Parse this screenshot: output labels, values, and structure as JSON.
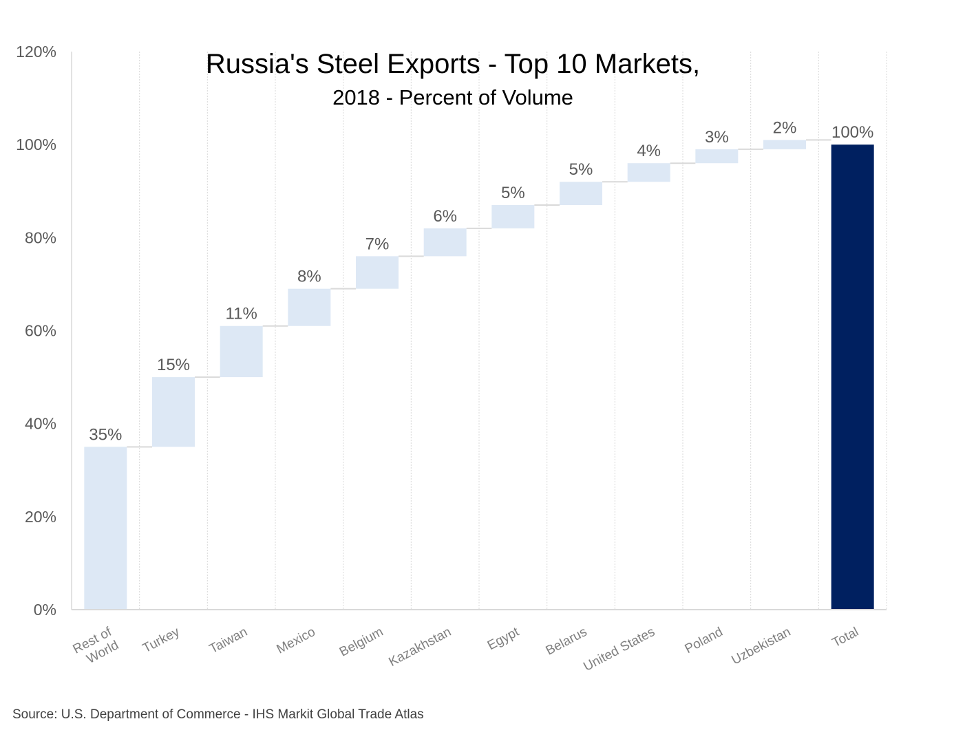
{
  "chart_data": {
    "type": "waterfall",
    "title": "Russia's Steel Exports - Top 10 Markets,",
    "subtitle": "2018 - Percent of Volume",
    "categories": [
      "Rest of World",
      "Turkey",
      "Taiwan",
      "Mexico",
      "Belgium",
      "Kazakhstan",
      "Egypt",
      "Belarus",
      "United States",
      "Poland",
      "Uzbekistan",
      "Total"
    ],
    "category_lines": [
      [
        "Rest of",
        "World"
      ],
      [
        "Turkey"
      ],
      [
        "Taiwan"
      ],
      [
        "Mexico"
      ],
      [
        "Belgium"
      ],
      [
        "Kazakhstan"
      ],
      [
        "Egypt"
      ],
      [
        "Belarus"
      ],
      [
        "United States"
      ],
      [
        "Poland"
      ],
      [
        "Uzbekistan"
      ],
      [
        "Total"
      ]
    ],
    "values": [
      35,
      15,
      11,
      8,
      7,
      6,
      5,
      5,
      4,
      3,
      2,
      100
    ],
    "labels": [
      "35%",
      "15%",
      "11%",
      "8%",
      "7%",
      "6%",
      "5%",
      "5%",
      "4%",
      "3%",
      "2%",
      "100%"
    ],
    "total_index": 11,
    "y_ticks": [
      0,
      20,
      40,
      60,
      80,
      100,
      120
    ],
    "y_tick_labels": [
      "0%",
      "20%",
      "40%",
      "60%",
      "80%",
      "100%",
      "120%"
    ],
    "ylim": [
      0,
      120
    ],
    "grid": "vertical",
    "colors": {
      "increment": "#dde8f5",
      "total": "#002060",
      "connector": "#d9d9d9",
      "grid": "#d9d9d9"
    }
  },
  "source": "Source:  U.S. Department  of Commerce - IHS Markit Global Trade  Atlas"
}
